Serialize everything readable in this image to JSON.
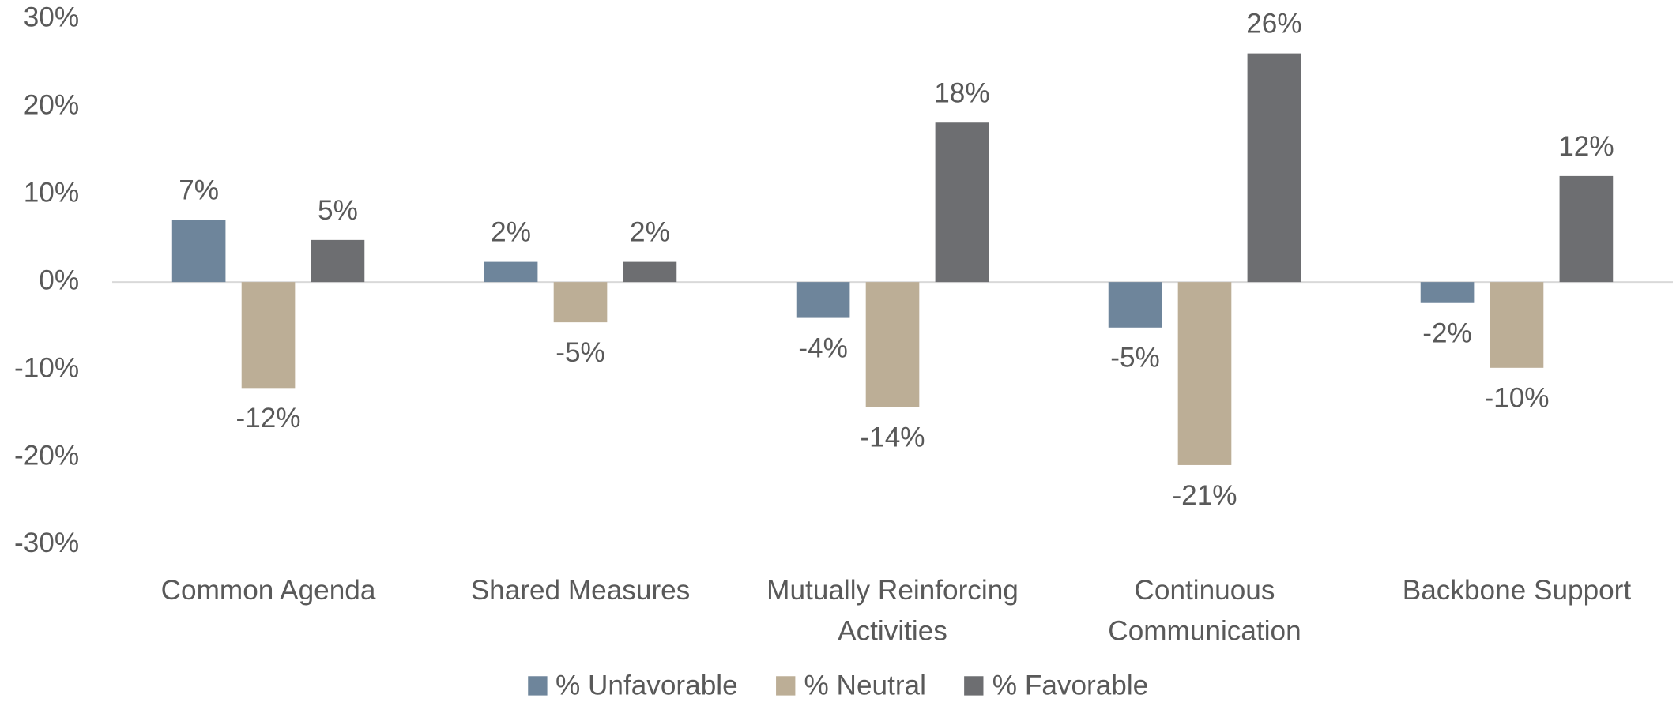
{
  "chart_data": {
    "type": "bar",
    "categories": [
      "Common Agenda",
      "Shared Measures",
      "Mutually Reinforcing Activities",
      "Continuous Communication",
      "Backbone Support"
    ],
    "series": [
      {
        "name": "% Unfavorable",
        "color": "#6e859b",
        "values": [
          7.1,
          2.3,
          -4.1,
          -5.2,
          -2.4
        ],
        "value_labels": [
          "7%",
          "2%",
          "-4%",
          "-5%",
          "-2%"
        ]
      },
      {
        "name": "% Neutral",
        "color": "#bcae96",
        "values": [
          -12.1,
          -4.6,
          -14.3,
          -20.9,
          -9.8
        ],
        "value_labels": [
          "-12%",
          "-5%",
          "-14%",
          "-21%",
          "-10%"
        ]
      },
      {
        "name": "% Favorable",
        "color": "#6d6e71",
        "values": [
          4.8,
          2.3,
          18.2,
          26.1,
          12.1
        ],
        "value_labels": [
          "5%",
          "2%",
          "18%",
          "26%",
          "12%"
        ]
      }
    ],
    "ylim": [
      -30,
      30
    ],
    "yticks": [
      {
        "value": -30,
        "label": "-30%"
      },
      {
        "value": -20,
        "label": "-20%"
      },
      {
        "value": -10,
        "label": "-10%"
      },
      {
        "value": 0,
        "label": "0%"
      },
      {
        "value": 10,
        "label": "10%"
      },
      {
        "value": 20,
        "label": "20%"
      },
      {
        "value": 30,
        "label": "30%"
      }
    ],
    "legend": "bottom"
  }
}
